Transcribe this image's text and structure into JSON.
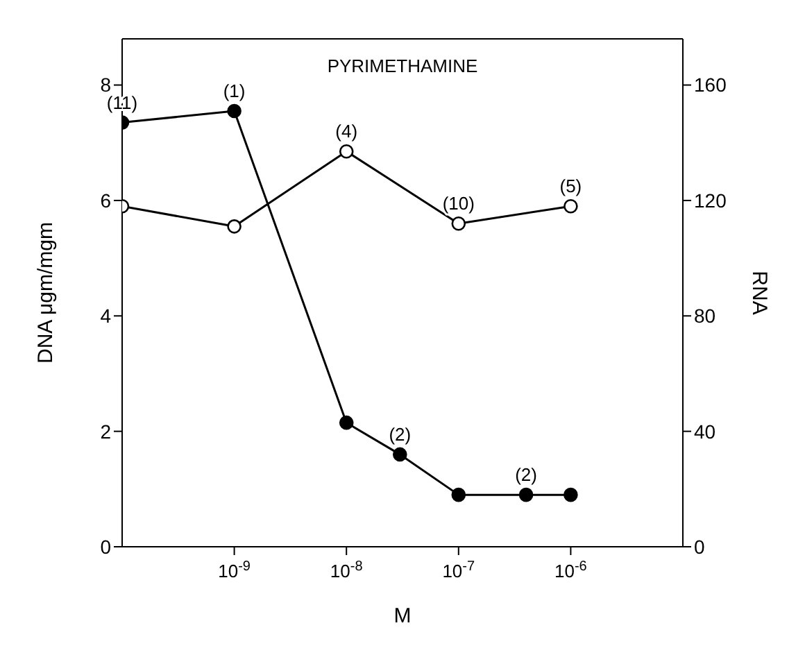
{
  "chart_data": {
    "type": "line",
    "title": "PYRIMETHAMINE",
    "xlabel": "M",
    "ylabel": "DNA μgm/mgm",
    "y2label": "RNA",
    "log": "x",
    "marker": "circle",
    "line_style": "solid",
    "xlim": [
      1e-10,
      1e-05
    ],
    "xticks": [
      {
        "value": 1e-09,
        "label": "10$^{-9}$"
      },
      {
        "value": 1e-08,
        "label": "10$^{-8}$"
      },
      {
        "value": 1e-07,
        "label": "10$^{-7}$"
      },
      {
        "value": 1e-06,
        "label": "10$^{-6}$"
      }
    ],
    "ylim": [
      0,
      8.8
    ],
    "yticks": [
      0,
      2,
      4,
      6,
      8
    ],
    "y2lim": [
      0,
      176
    ],
    "y2ticks": [
      0,
      40,
      80,
      120,
      160
    ],
    "series": [
      {
        "color": "#000000",
        "x": [
          1e-10,
          1e-09,
          1e-08,
          3e-08,
          1e-07,
          4e-07,
          1e-06
        ],
        "values": [
          7.35,
          7.55,
          2.15,
          1.6,
          0.9,
          0.9,
          0.9
        ]
      },
      {
        "color": "#000000",
        "axis": "y2",
        "x": [
          1e-10,
          1e-09,
          1e-08,
          1e-07,
          1e-06
        ],
        "values": [
          118,
          111,
          137,
          112,
          118
        ]
      }
    ],
    "annotations": [
      {
        "text": "(11)",
        "x": 1e-10,
        "y": 7.35
      },
      {
        "text": "(1)",
        "x": 1e-09,
        "y": 7.55
      },
      {
        "text": "(4)",
        "x": 1e-08,
        "y": 6.85
      },
      {
        "text": "(2)",
        "x": 3e-08,
        "y": 1.6
      },
      {
        "text": "(10)",
        "x": 1e-07,
        "y": 5.6
      },
      {
        "text": "(2)",
        "x": 4e-07,
        "y": 0.9
      },
      {
        "text": "(5)",
        "x": 1e-06,
        "y": 5.9
      }
    ]
  }
}
